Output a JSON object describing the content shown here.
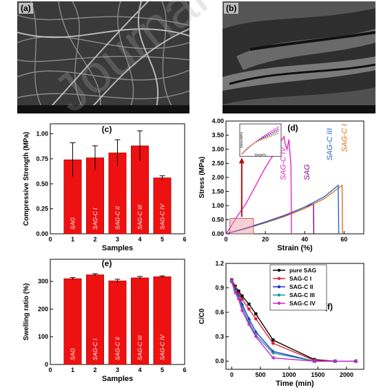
{
  "watermark": "Journal Pre-proof",
  "panels": {
    "a": {
      "label": "(a)"
    },
    "b": {
      "label": "(b)"
    },
    "c": {
      "label": "(c)"
    },
    "d": {
      "label": "(d)"
    },
    "e": {
      "label": "(e)"
    },
    "f": {
      "label": "(f)"
    }
  },
  "chart_data": [
    {
      "id": "c",
      "type": "bar",
      "title": "",
      "xlabel": "Samples",
      "ylabel": "Compressive Strength (MPa)",
      "xlim": [
        0,
        6
      ],
      "ylim": [
        0,
        1.1
      ],
      "xticks": [
        0,
        1,
        2,
        3,
        4,
        5,
        6
      ],
      "yticks": [
        0.0,
        0.25,
        0.5,
        0.75,
        1.0
      ],
      "x": [
        1,
        2,
        3,
        4,
        5
      ],
      "values": [
        0.74,
        0.76,
        0.81,
        0.88,
        0.56
      ],
      "errors": [
        0.17,
        0.12,
        0.13,
        0.15,
        0.02
      ],
      "bar_labels": [
        "SAG",
        "SAG-C I",
        "SAG-C II",
        "SAG-C III",
        "SAG-C IV"
      ],
      "color": "#ee1111"
    },
    {
      "id": "d",
      "type": "line",
      "xlabel": "Strain (%)",
      "ylabel": "Stress (MPa)",
      "xlim": [
        0,
        70
      ],
      "ylim": [
        0,
        4.0
      ],
      "xticks": [
        0,
        20,
        40,
        60
      ],
      "yticks": [
        0.0,
        0.5,
        1.0,
        1.5,
        2.0,
        2.5,
        3.0,
        3.5,
        4.0
      ],
      "series": [
        {
          "name": "SAG",
          "color": "#880088",
          "points": [
            [
              0,
              0
            ],
            [
              10,
              0.2
            ],
            [
              20,
              0.42
            ],
            [
              30,
              0.66
            ],
            [
              40,
              0.95
            ],
            [
              44.5,
              1.06
            ],
            [
              44.6,
              0
            ]
          ]
        },
        {
          "name": "SAG-C I",
          "color": "#e07010",
          "points": [
            [
              0,
              0
            ],
            [
              10,
              0.18
            ],
            [
              20,
              0.39
            ],
            [
              30,
              0.62
            ],
            [
              40,
              0.9
            ],
            [
              50,
              1.25
            ],
            [
              59,
              1.72
            ],
            [
              59.2,
              0
            ]
          ]
        },
        {
          "name": "SAG-C III",
          "color": "#2266cc",
          "points": [
            [
              0,
              0
            ],
            [
              10,
              0.19
            ],
            [
              20,
              0.41
            ],
            [
              30,
              0.65
            ],
            [
              40,
              0.95
            ],
            [
              50,
              1.32
            ],
            [
              57,
              1.72
            ],
            [
              57.3,
              0
            ]
          ]
        },
        {
          "name": "SAG-C IV",
          "color": "#ee22cc",
          "points": [
            [
              0,
              0
            ],
            [
              2,
              0.2
            ],
            [
              5,
              0.55
            ],
            [
              10,
              1.05
            ],
            [
              15,
              1.7
            ],
            [
              20,
              2.35
            ],
            [
              25,
              2.9
            ],
            [
              28,
              3.3
            ],
            [
              29.5,
              3.45
            ],
            [
              30,
              3.2
            ],
            [
              31,
              3.0
            ],
            [
              32,
              3.35
            ],
            [
              33,
              2.4
            ],
            [
              33.3,
              0
            ]
          ]
        }
      ],
      "annotations": [
        "SAG-C IV",
        "SAG",
        "SAG-C III",
        "SAG-C I"
      ],
      "inset": {
        "ylabel": "Stress/MPa",
        "xlabel": "Strain/%"
      }
    },
    {
      "id": "e",
      "type": "bar",
      "title": "",
      "xlabel": "Samples",
      "ylabel": "Swelling ratio (%)",
      "xlim": [
        0,
        6
      ],
      "ylim": [
        0,
        380
      ],
      "xticks": [
        0,
        1,
        2,
        3,
        4,
        5,
        6
      ],
      "yticks": [
        0,
        100,
        200,
        300
      ],
      "x": [
        1,
        2,
        3,
        4,
        5
      ],
      "values": [
        310,
        324,
        302,
        313,
        317
      ],
      "errors": [
        4,
        4,
        6,
        5,
        3
      ],
      "bar_labels": [
        "SAG",
        "SAG-C I",
        "SAG-C II",
        "SAG-C III",
        "SAG-C IV"
      ],
      "color": "#ee1111"
    },
    {
      "id": "f",
      "type": "line",
      "xlabel": "Time (min)",
      "ylabel": "C/C0",
      "xlim": [
        -100,
        2300
      ],
      "ylim": [
        -0.1,
        1.2
      ],
      "xticks": [
        0,
        500,
        1000,
        1500,
        2000
      ],
      "yticks": [
        0.0,
        0.3,
        0.6,
        0.9,
        1.2
      ],
      "legend_position": "top-right",
      "series": [
        {
          "name": "pure SAG",
          "color": "#000000",
          "marker": "square",
          "points": [
            [
              0,
              1.0
            ],
            [
              60,
              0.92
            ],
            [
              120,
              0.86
            ],
            [
              180,
              0.8
            ],
            [
              300,
              0.7
            ],
            [
              420,
              0.58
            ],
            [
              720,
              0.26
            ],
            [
              1440,
              0.02
            ],
            [
              1800,
              0.0
            ],
            [
              2160,
              0.0
            ]
          ]
        },
        {
          "name": "SAG-C I",
          "color": "#dd2233",
          "marker": "circle",
          "points": [
            [
              0,
              1.0
            ],
            [
              60,
              0.9
            ],
            [
              120,
              0.82
            ],
            [
              180,
              0.76
            ],
            [
              300,
              0.64
            ],
            [
              420,
              0.52
            ],
            [
              720,
              0.22
            ],
            [
              1440,
              0.01
            ],
            [
              1800,
              0.0
            ],
            [
              2160,
              0.0
            ]
          ]
        },
        {
          "name": "SAG-C II",
          "color": "#2233cc",
          "marker": "triangle",
          "points": [
            [
              0,
              0.99
            ],
            [
              60,
              0.88
            ],
            [
              120,
              0.8
            ],
            [
              180,
              0.7
            ],
            [
              300,
              0.52
            ],
            [
              420,
              0.36
            ],
            [
              720,
              0.12
            ],
            [
              1440,
              0.0
            ],
            [
              1800,
              0.0
            ],
            [
              2160,
              0.0
            ]
          ]
        },
        {
          "name": "SAG-C III",
          "color": "#119999",
          "marker": "triangle-down",
          "points": [
            [
              0,
              0.98
            ],
            [
              60,
              0.86
            ],
            [
              120,
              0.78
            ],
            [
              180,
              0.66
            ],
            [
              300,
              0.48
            ],
            [
              420,
              0.32
            ],
            [
              720,
              0.1
            ],
            [
              1440,
              0.0
            ],
            [
              1800,
              0.0
            ],
            [
              2160,
              0.0
            ]
          ]
        },
        {
          "name": "SAG-C IV",
          "color": "#cc22cc",
          "marker": "triangle-left",
          "points": [
            [
              0,
              0.97
            ],
            [
              60,
              0.84
            ],
            [
              120,
              0.76
            ],
            [
              180,
              0.62
            ],
            [
              300,
              0.45
            ],
            [
              420,
              0.3
            ],
            [
              720,
              0.04
            ],
            [
              1440,
              0.0
            ],
            [
              1800,
              0.0
            ],
            [
              2160,
              0.0
            ]
          ]
        }
      ]
    }
  ]
}
